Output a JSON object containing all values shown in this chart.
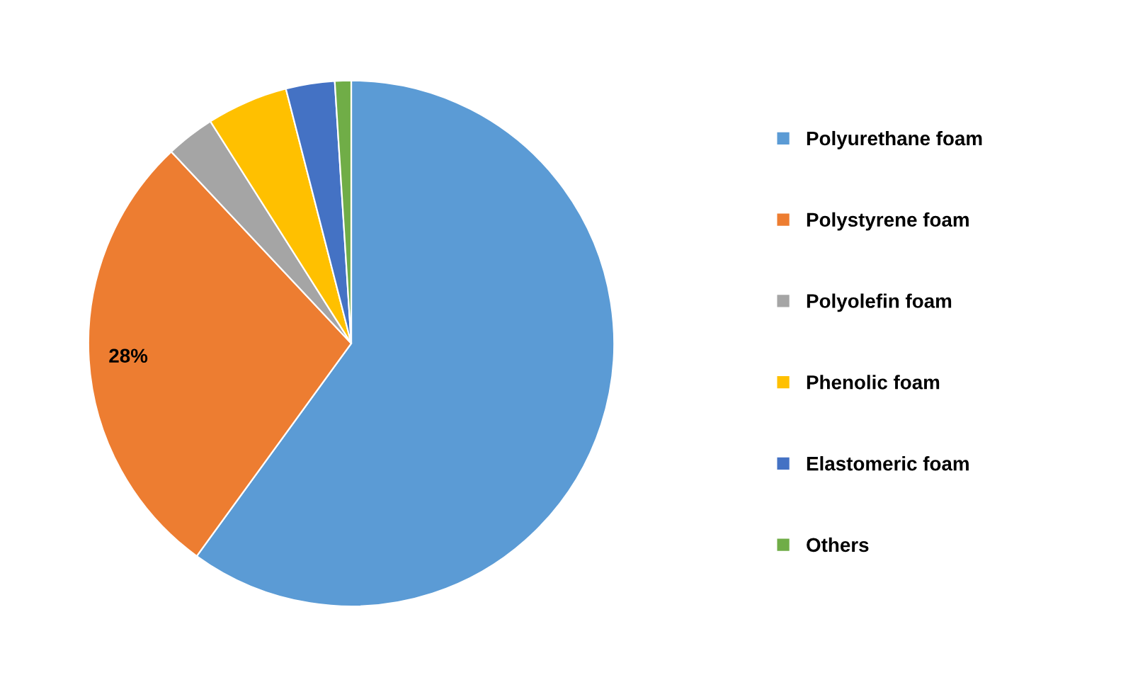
{
  "chart_data": {
    "type": "pie",
    "categories": [
      "Polyurethane foam",
      "Polystyrene foam",
      "Polyolefin foam",
      "Phenolic foam",
      "Elastomeric foam",
      "Others"
    ],
    "values": [
      60,
      28,
      3,
      5,
      3,
      1
    ],
    "colors": [
      "#5b9bd5",
      "#ed7d31",
      "#a5a5a5",
      "#ffc000",
      "#4472c4",
      "#70ad47"
    ],
    "value_labels": [
      null,
      "28%",
      null,
      null,
      null,
      null
    ],
    "legend": "right"
  }
}
